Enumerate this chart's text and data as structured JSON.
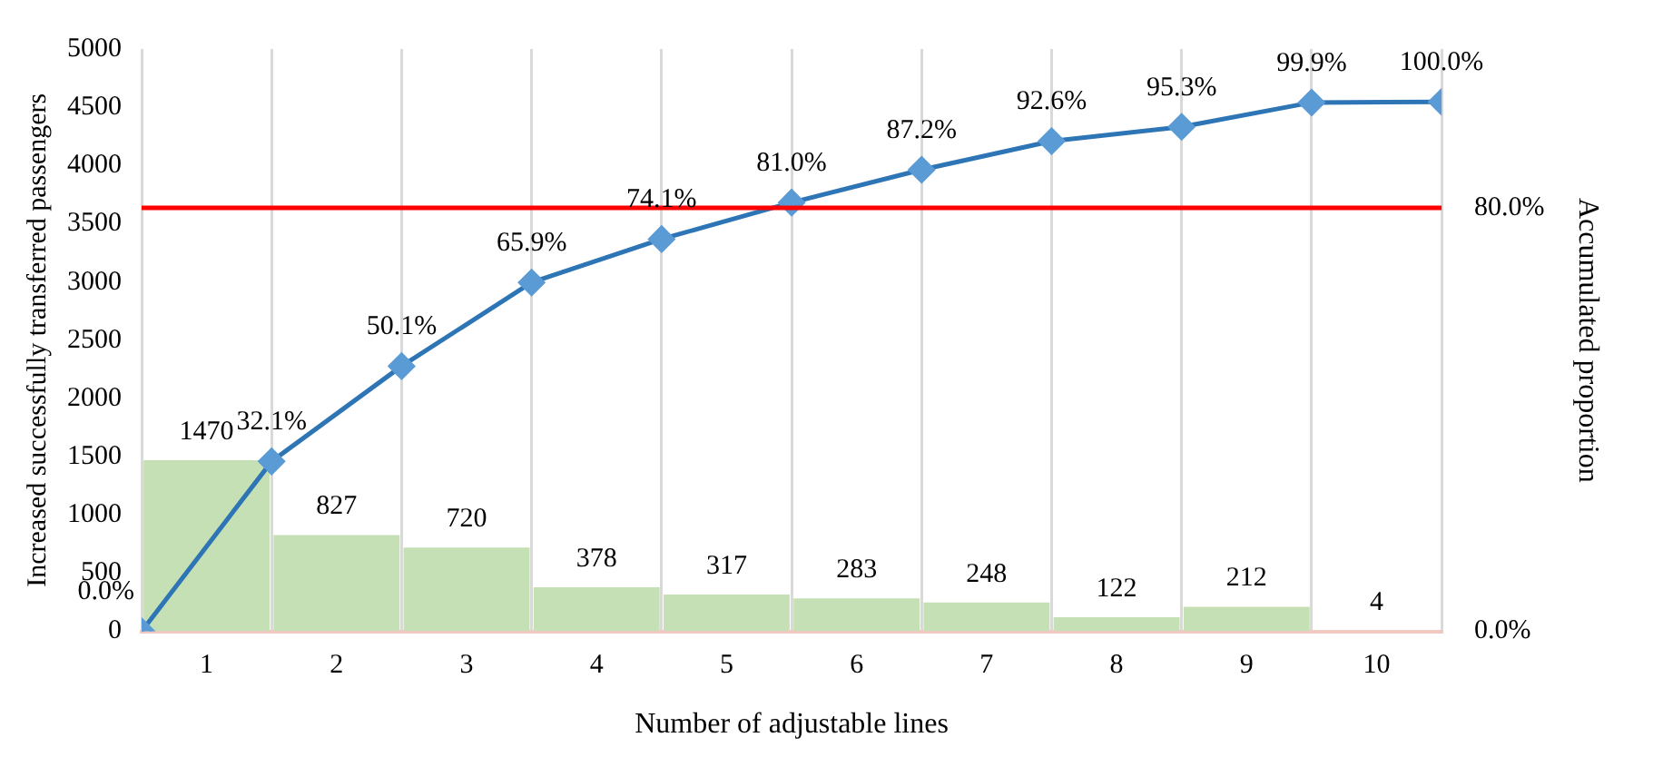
{
  "chart_data": {
    "type": "bar",
    "x": [
      1,
      2,
      3,
      4,
      5,
      6,
      7,
      8,
      9,
      10
    ],
    "xlim": [
      0.5,
      10.5
    ],
    "xticks": [
      {
        "value": 0.5,
        "label": null
      },
      1,
      {
        "value": 1.5,
        "label": null
      },
      2,
      {
        "value": 2.5,
        "label": null
      },
      3,
      {
        "value": 3.5,
        "label": null
      },
      4,
      {
        "value": 4.5,
        "label": null
      },
      5,
      {
        "value": 5.5,
        "label": null
      },
      6,
      {
        "value": 6.5,
        "label": null
      },
      7,
      {
        "value": 7.5,
        "label": null
      },
      8,
      {
        "value": 8.5,
        "label": null
      },
      9,
      {
        "value": 9.5,
        "label": null
      },
      10,
      {
        "value": 10.5,
        "label": null
      }
    ],
    "xlabel": "Number of adjustable lines",
    "ylabel": "Increased successfully transferred passengers",
    "y2label": "Accumulated proportion",
    "series": [
      {
        "color": "#c5e0b4",
        "values": [
          1470,
          827,
          720,
          378,
          317,
          283,
          248,
          122,
          212,
          4
        ],
        "value_labels": [
          "1470",
          "827",
          "720",
          "378",
          "317",
          "283",
          "248",
          "122",
          "212",
          "4"
        ]
      },
      {
        "type": "line",
        "axis": "y2",
        "color": "#2e75b6",
        "marker": "diamond",
        "x": [
          0.5,
          1.5,
          2.5,
          3.5,
          4.5,
          5.5,
          6.5,
          7.5,
          8.5,
          9.5,
          10.5
        ],
        "values": [
          0,
          32.1,
          50.1,
          65.9,
          74.1,
          81.0,
          87.2,
          92.6,
          95.3,
          99.9,
          100.0
        ],
        "value_labels": [
          "0.0%",
          "32.1%",
          "50.1%",
          "65.9%",
          "74.1%",
          "81.0%",
          "87.2%",
          "92.6%",
          "95.3%",
          "99.9%",
          "100.0%"
        ]
      }
    ],
    "ylim": [
      0,
      5000
    ],
    "yticks": [
      0,
      500,
      1000,
      1500,
      2000,
      2500,
      3000,
      3500,
      4000,
      4500,
      5000
    ],
    "y2lim": [
      0,
      110
    ],
    "y2ticks": [
      {
        "value": 0,
        "label": "0.0%"
      },
      {
        "value": 80,
        "label": "80.0%"
      }
    ],
    "ref_lines": [
      {
        "axis": "y2",
        "value": 80,
        "color": "#ff0000"
      }
    ],
    "grid": "x",
    "legend": false
  }
}
